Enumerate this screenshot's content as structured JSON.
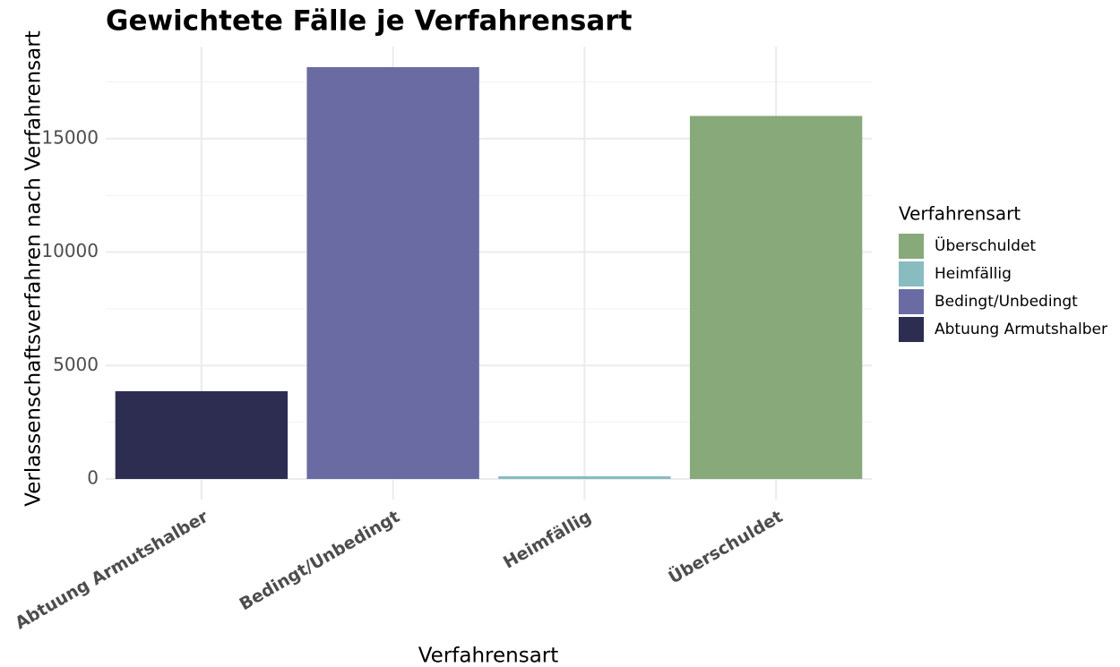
{
  "chart_data": {
    "type": "bar",
    "title": "Gewichtete Fälle je Verfahrensart",
    "x_label": "Verfahrensart",
    "y_label": "Verlassenschaftsverfahren nach Verfahrensart",
    "categories": [
      "Abtuung Armutshalber",
      "Bedingt/Unbedingt",
      "Heimfällig",
      "Überschuldet"
    ],
    "values": [
      3870,
      18150,
      120,
      16000
    ],
    "colors": [
      "#2d2d52",
      "#6b6ba3",
      "#88bcc0",
      "#88a97a"
    ],
    "ylim": [
      -907.5,
      19057.5
    ],
    "yticks": [
      0,
      5000,
      10000,
      15000
    ],
    "y_minor_ticks": [
      2500,
      7500,
      12500,
      17500
    ],
    "grid": true,
    "legend": {
      "title": "Verfahrensart",
      "position": "right",
      "order": [
        3,
        2,
        1,
        0
      ]
    }
  }
}
